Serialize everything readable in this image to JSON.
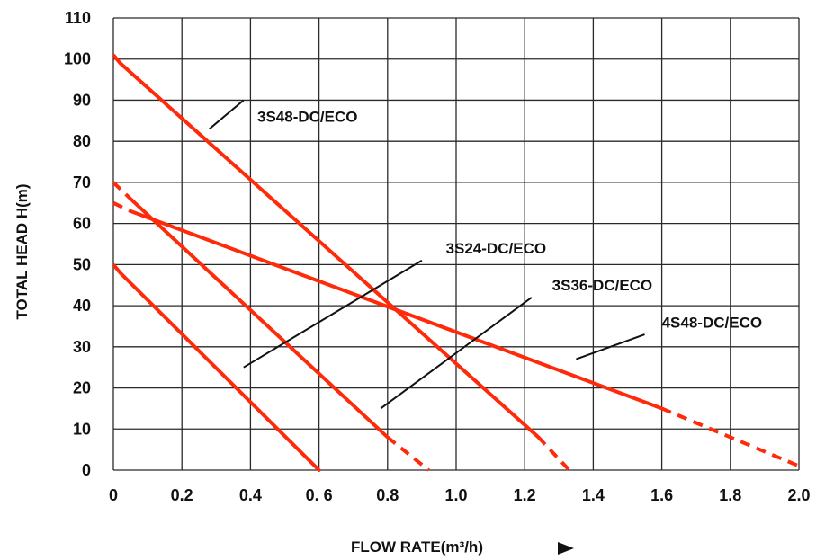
{
  "chart_data": {
    "type": "line",
    "title": "",
    "xlabel": "FLOW RATE(m³/h)",
    "ylabel": "TOTAL  HEAD  H(m)",
    "xlim": [
      0,
      2.0
    ],
    "ylim": [
      0,
      110
    ],
    "x_ticks": [
      "0",
      "0.2",
      "0.4",
      "0. 6",
      "0.8",
      "1.0",
      "1.2",
      "1.4",
      "1.6",
      "1.8",
      "2.0"
    ],
    "y_ticks": [
      "0",
      "10",
      "20",
      "30",
      "40",
      "50",
      "60",
      "70",
      "80",
      "90",
      "100",
      "110"
    ],
    "grid": true,
    "line_color": "#ff2a0a",
    "series": [
      {
        "name": "3S24-DC/ECO",
        "values_solid": [
          [
            0.02,
            48
          ],
          [
            0.6,
            0
          ]
        ],
        "dashed_segments": [
          [
            [
              0,
              50
            ],
            [
              0.02,
              48
            ]
          ]
        ]
      },
      {
        "name": "3S36-DC/ECO",
        "values_solid": [
          [
            0.05,
            66
          ],
          [
            0.8,
            8
          ]
        ],
        "dashed_segments": [
          [
            [
              0,
              70
            ],
            [
              0.05,
              66
            ]
          ],
          [
            [
              0.8,
              8
            ],
            [
              0.92,
              0
            ]
          ]
        ]
      },
      {
        "name": "3S48-DC/ECO",
        "values_solid": [
          [
            0.02,
            99
          ],
          [
            1.24,
            8
          ]
        ],
        "dashed_segments": [
          [
            [
              0,
              101
            ],
            [
              0.02,
              99
            ]
          ],
          [
            [
              1.24,
              8
            ],
            [
              1.33,
              0
            ]
          ]
        ]
      },
      {
        "name": "4S48-DC/ECO",
        "values_solid": [
          [
            0.05,
            63
          ],
          [
            1.6,
            15
          ]
        ],
        "dashed_segments": [
          [
            [
              0,
              65
            ],
            [
              0.05,
              63
            ]
          ],
          [
            [
              1.6,
              15
            ],
            [
              2.0,
              1
            ]
          ]
        ]
      }
    ],
    "annotations": [
      {
        "text": "3S48-DC/ECO",
        "text_at": [
          0.42,
          86
        ],
        "leader": [
          [
            0.38,
            90
          ],
          [
            0.28,
            83
          ]
        ]
      },
      {
        "text": "3S24-DC/ECO",
        "text_at": [
          0.97,
          54
        ],
        "leader": [
          [
            0.9,
            51
          ],
          [
            0.38,
            25
          ]
        ]
      },
      {
        "text": "3S36-DC/ECO",
        "text_at": [
          1.28,
          45
        ],
        "leader": [
          [
            1.22,
            42
          ],
          [
            0.78,
            15
          ]
        ]
      },
      {
        "text": "4S48-DC/ECO",
        "text_at": [
          1.6,
          36
        ],
        "leader": [
          [
            1.55,
            33
          ],
          [
            1.35,
            27
          ]
        ]
      }
    ]
  }
}
